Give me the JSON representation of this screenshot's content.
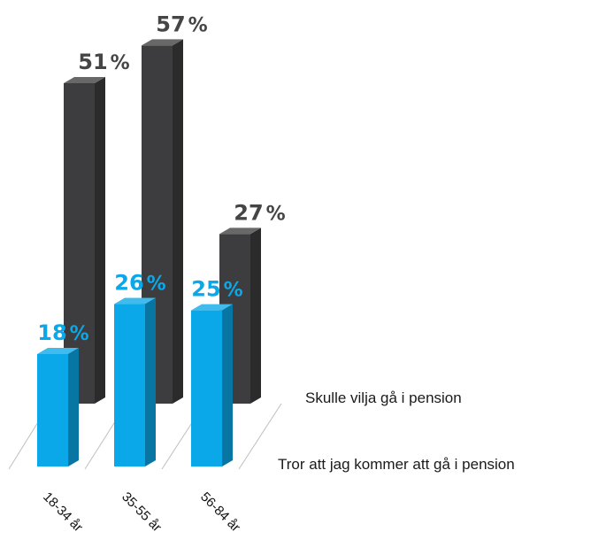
{
  "chart_data": {
    "type": "bar",
    "categories": [
      "18-34 år",
      "35-55 år",
      "56-84 år"
    ],
    "series": [
      {
        "name": "Skulle vilja gå i pension",
        "values": [
          51,
          57,
          27
        ],
        "color": "#3d3d3f"
      },
      {
        "name": "Tror att jag kommer att gå i pension",
        "values": [
          18,
          26,
          25
        ],
        "color": "#0aa8e8"
      }
    ],
    "value_suffix": "%",
    "ylim": [
      0,
      57
    ],
    "grid": false,
    "legend": "right-of-bars"
  }
}
